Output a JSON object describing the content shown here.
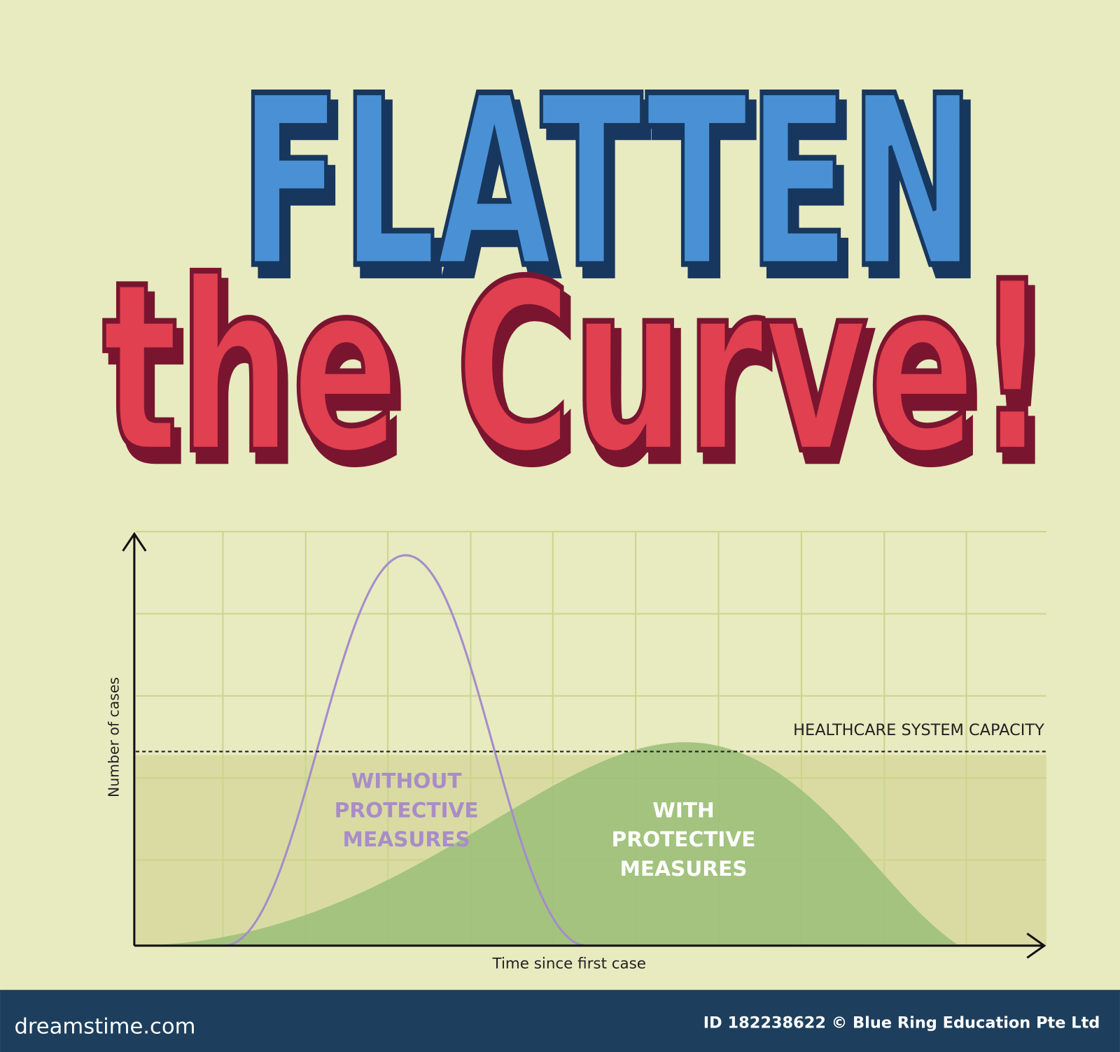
{
  "title": {
    "line1": "FLATTEN",
    "line2": "the Curve!"
  },
  "chart": {
    "y_axis_label": "Number of cases",
    "x_axis_label": "Time since first case",
    "capacity_label": "HEALTHCARE SYSTEM CAPACITY",
    "without_label": [
      "WITHOUT",
      "PROTECTIVE",
      "MEASURES"
    ],
    "with_label": [
      "WITH",
      "PROTECTIVE",
      "MEASURES"
    ]
  },
  "footer": {
    "brand": "dreamstime.com",
    "credit": "ID 182238622 © Blue Ring Education Pte Ltd"
  }
}
